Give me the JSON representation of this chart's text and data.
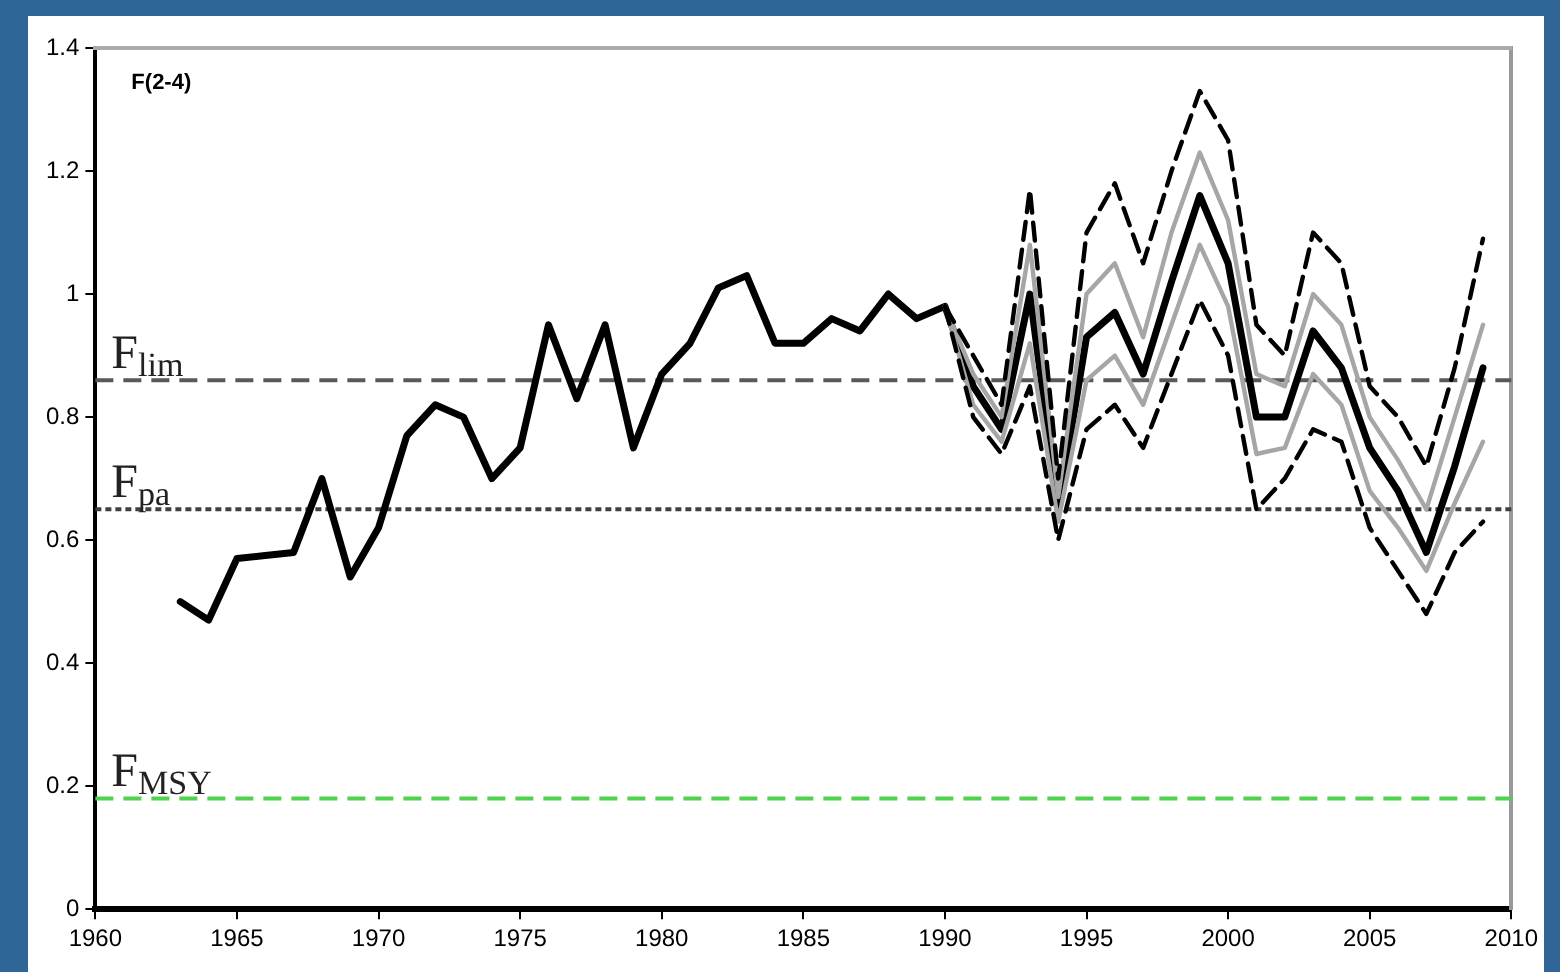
{
  "chart_data": {
    "type": "line",
    "annotations": [
      "F(2-4)"
    ],
    "x": [
      1963,
      1964,
      1965,
      1966,
      1967,
      1968,
      1969,
      1970,
      1971,
      1972,
      1973,
      1974,
      1975,
      1976,
      1977,
      1978,
      1979,
      1980,
      1981,
      1982,
      1983,
      1984,
      1985,
      1986,
      1987,
      1988,
      1989,
      1990,
      1991,
      1992,
      1993,
      1994,
      1995,
      1996,
      1997,
      1998,
      1999,
      2000,
      2001,
      2002,
      2003,
      2004,
      2005,
      2006,
      2007,
      2008,
      2009
    ],
    "series": [
      {
        "color": "#000000",
        "line_style": "dashed",
        "x": [
          1990,
          1991,
          1992,
          1993,
          1994,
          1995,
          1996,
          1997,
          1998,
          1999,
          2000,
          2001,
          2002,
          2003,
          2004,
          2005,
          2006,
          2007,
          2008,
          2009
        ],
        "values": [
          0.98,
          0.9,
          0.82,
          1.17,
          0.7,
          1.1,
          1.18,
          1.05,
          1.2,
          1.33,
          1.25,
          0.95,
          0.9,
          1.1,
          1.05,
          0.85,
          0.8,
          0.72,
          0.88,
          1.09
        ]
      },
      {
        "color": "#000000",
        "line_style": "dashed",
        "x": [
          1990,
          1991,
          1992,
          1993,
          1994,
          1995,
          1996,
          1997,
          1998,
          1999,
          2000,
          2001,
          2002,
          2003,
          2004,
          2005,
          2006,
          2007,
          2008,
          2009
        ],
        "values": [
          0.98,
          0.8,
          0.74,
          0.85,
          0.6,
          0.78,
          0.82,
          0.75,
          0.87,
          0.99,
          0.9,
          0.65,
          0.7,
          0.78,
          0.76,
          0.62,
          0.55,
          0.48,
          0.58,
          0.63
        ]
      },
      {
        "color": "#a6a6a6",
        "line_style": "solid",
        "x": [
          1990,
          1991,
          1992,
          1993,
          1994,
          1995,
          1996,
          1997,
          1998,
          1999,
          2000,
          2001,
          2002,
          2003,
          2004,
          2005,
          2006,
          2007,
          2008,
          2009
        ],
        "values": [
          0.98,
          0.87,
          0.8,
          1.08,
          0.67,
          1.0,
          1.05,
          0.93,
          1.1,
          1.23,
          1.12,
          0.87,
          0.85,
          1.0,
          0.95,
          0.8,
          0.73,
          0.65,
          0.8,
          0.95
        ]
      },
      {
        "color": "#a6a6a6",
        "line_style": "solid",
        "x": [
          1990,
          1991,
          1992,
          1993,
          1994,
          1995,
          1996,
          1997,
          1998,
          1999,
          2000,
          2001,
          2002,
          2003,
          2004,
          2005,
          2006,
          2007,
          2008,
          2009
        ],
        "values": [
          0.98,
          0.82,
          0.76,
          0.92,
          0.63,
          0.86,
          0.9,
          0.82,
          0.95,
          1.08,
          0.98,
          0.74,
          0.75,
          0.87,
          0.82,
          0.68,
          0.62,
          0.55,
          0.66,
          0.76
        ]
      },
      {
        "color": "#000000",
        "line_style": "solid",
        "values": [
          0.5,
          0.47,
          0.57,
          0.575,
          0.58,
          0.7,
          0.54,
          0.62,
          0.77,
          0.82,
          0.8,
          0.7,
          0.75,
          0.95,
          0.83,
          0.95,
          0.75,
          0.87,
          0.92,
          1.01,
          1.03,
          0.92,
          0.92,
          0.96,
          0.94,
          1.0,
          0.96,
          0.98,
          0.85,
          0.78,
          1.0,
          0.65,
          0.93,
          0.97,
          0.87,
          1.02,
          1.16,
          1.05,
          0.8,
          0.8,
          0.94,
          0.88,
          0.75,
          0.68,
          0.58,
          0.72,
          0.88
        ]
      }
    ],
    "ref_lines": [
      {
        "axis": "y",
        "value": 0.86,
        "label": "F$_{lim}$",
        "color": "#595959",
        "line_style": "dashed"
      },
      {
        "axis": "y",
        "value": 0.65,
        "label": "F$_{pa}$",
        "color": "#404040",
        "line_style": "dotted"
      },
      {
        "axis": "y",
        "value": 0.18,
        "label": "F$_{MSY}$",
        "color": "#4fd34f",
        "line_style": "dashed"
      }
    ],
    "xlim": [
      1960,
      2010
    ],
    "xticks": [
      1960,
      1965,
      1970,
      1975,
      1980,
      1985,
      1990,
      1995,
      2000,
      2005,
      2010
    ],
    "ylim": [
      0,
      1.4
    ],
    "yticks": [
      0,
      0.2,
      0.4,
      0.6,
      0.8,
      1,
      1.2,
      1.4
    ],
    "grid": false,
    "legend": false,
    "marker": "none"
  }
}
